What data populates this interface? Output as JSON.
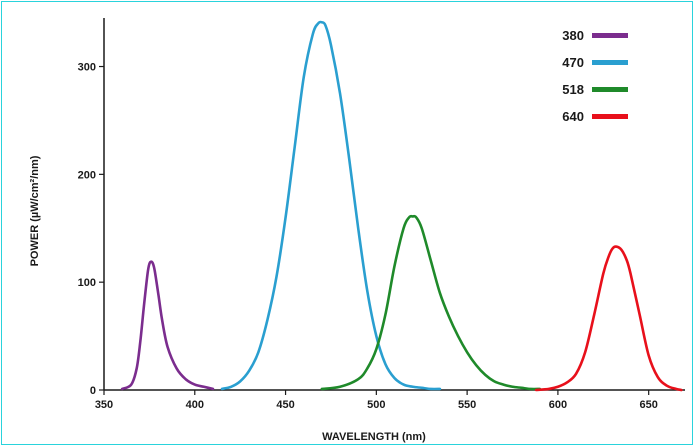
{
  "chart_data": {
    "type": "line",
    "title": "",
    "xlabel": "WAVELENGTH (nm)",
    "ylabel": "POWER (µW/cm²/nm)",
    "xlim": [
      350,
      670
    ],
    "ylim": [
      0,
      345
    ],
    "x_ticks": [
      350,
      400,
      450,
      500,
      550,
      600,
      650
    ],
    "y_ticks": [
      0,
      100,
      200,
      300
    ],
    "grid": false,
    "legend_position": "top-right",
    "series": [
      {
        "name": "380",
        "color": "#7b2d8e",
        "x": [
          360,
          365,
          368,
          370,
          372,
          374,
          375,
          376,
          377,
          378,
          380,
          382,
          385,
          390,
          395,
          400,
          405,
          410
        ],
        "y": [
          1,
          5,
          20,
          45,
          78,
          108,
          117,
          119,
          117,
          110,
          88,
          65,
          40,
          20,
          10,
          5,
          3,
          1
        ]
      },
      {
        "name": "470",
        "color": "#2a9fd0",
        "x": [
          415,
          420,
          425,
          430,
          435,
          440,
          445,
          450,
          455,
          460,
          465,
          468,
          470,
          472,
          475,
          480,
          485,
          490,
          495,
          500,
          505,
          510,
          515,
          520,
          525,
          530,
          535
        ],
        "y": [
          1,
          3,
          8,
          18,
          35,
          65,
          105,
          160,
          225,
          290,
          330,
          340,
          341,
          338,
          320,
          275,
          215,
          150,
          92,
          50,
          24,
          11,
          5,
          3,
          2,
          1,
          1
        ]
      },
      {
        "name": "518",
        "color": "#1f8a2a",
        "x": [
          470,
          480,
          490,
          495,
          500,
          505,
          510,
          515,
          518,
          520,
          522,
          525,
          530,
          535,
          540,
          545,
          550,
          555,
          560,
          565,
          570,
          575,
          580,
          585,
          590
        ],
        "y": [
          1,
          3,
          10,
          20,
          38,
          70,
          115,
          150,
          160,
          161,
          160,
          150,
          120,
          90,
          68,
          50,
          35,
          23,
          14,
          8,
          5,
          3,
          2,
          1,
          1
        ]
      },
      {
        "name": "640",
        "color": "#e8101b",
        "x": [
          588,
          595,
          600,
          605,
          610,
          615,
          620,
          625,
          628,
          630,
          632,
          635,
          638,
          640,
          645,
          650,
          655,
          660,
          665,
          668
        ],
        "y": [
          0,
          1,
          3,
          7,
          15,
          35,
          70,
          108,
          124,
          131,
          133,
          130,
          120,
          108,
          70,
          32,
          12,
          4,
          1,
          0
        ]
      }
    ]
  }
}
